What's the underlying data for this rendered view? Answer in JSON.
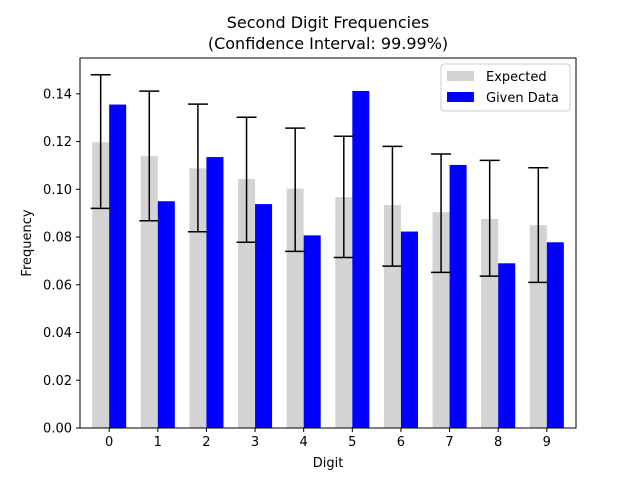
{
  "chart_data": {
    "type": "bar",
    "title": "Second Digit Frequencies",
    "subtitle": "(Confidence Interval: 99.99%)",
    "xlabel": "Digit",
    "ylabel": "Frequency",
    "categories": [
      "0",
      "1",
      "2",
      "3",
      "4",
      "5",
      "6",
      "7",
      "8",
      "9"
    ],
    "ylim": [
      0,
      0.155
    ],
    "yticks": [
      "0.00",
      "0.02",
      "0.04",
      "0.06",
      "0.08",
      "0.10",
      "0.12",
      "0.14"
    ],
    "grid": false,
    "legend_position": "top-right",
    "series": [
      {
        "name": "Expected",
        "color": "#d3d3d3",
        "values": [
          0.1197,
          0.1139,
          0.1088,
          0.1043,
          0.1003,
          0.0967,
          0.0934,
          0.0904,
          0.0876,
          0.085
        ],
        "error_low": [
          0.092,
          0.0868,
          0.0822,
          0.0778,
          0.074,
          0.0714,
          0.0678,
          0.0652,
          0.0636,
          0.061
        ],
        "error_high": [
          0.148,
          0.1411,
          0.1357,
          0.1302,
          0.1256,
          0.1222,
          0.118,
          0.1148,
          0.1121,
          0.109
        ]
      },
      {
        "name": "Given Data",
        "color": "#0000ff",
        "values": [
          0.1355,
          0.095,
          0.1135,
          0.0938,
          0.0807,
          0.1412,
          0.0823,
          0.1102,
          0.069,
          0.0778
        ]
      }
    ]
  }
}
